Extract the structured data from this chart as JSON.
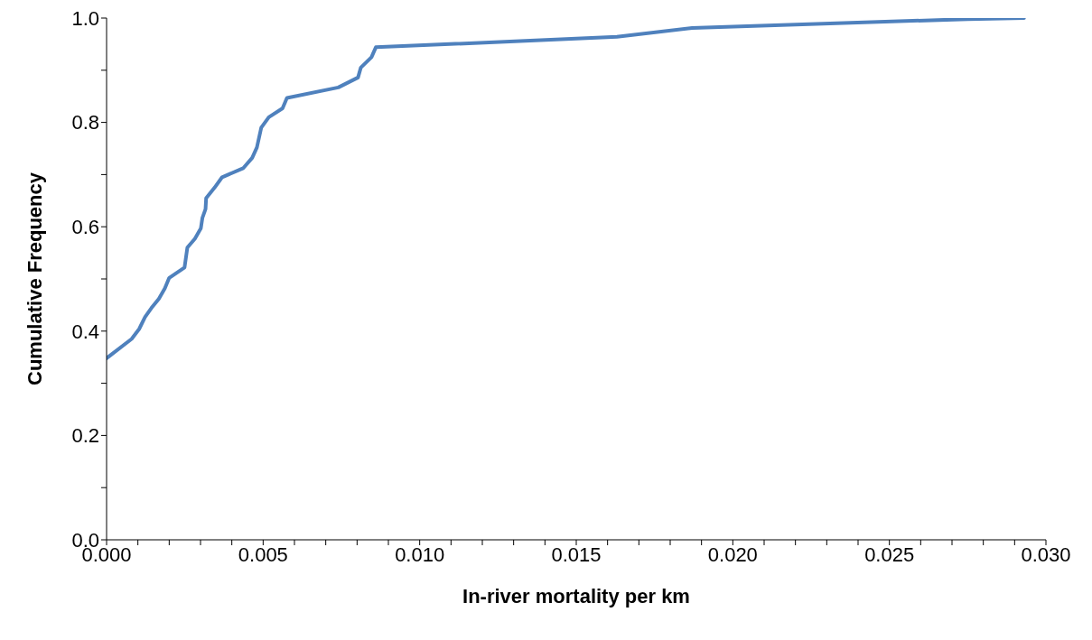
{
  "chart_data": {
    "type": "line",
    "xlabel": "In-river mortality per km",
    "ylabel": "Cumulative Frequency",
    "x": [
      0,
      0.0008,
      0.00104,
      0.00123,
      0.00143,
      0.00167,
      0.00186,
      0.002,
      0.00249,
      0.00258,
      0.00282,
      0.00301,
      0.00306,
      0.00316,
      0.00318,
      0.00345,
      0.00369,
      0.00436,
      0.00465,
      0.0048,
      0.00494,
      0.00518,
      0.00562,
      0.00576,
      0.0074,
      0.00803,
      0.00812,
      0.00846,
      0.0086,
      0.0163,
      0.0187,
      0.0275,
      0.0293
    ],
    "series": [
      {
        "color": "#4f81bd",
        "values": [
          0.348,
          0.385,
          0.404,
          0.427,
          0.444,
          0.462,
          0.482,
          0.502,
          0.522,
          0.56,
          0.577,
          0.597,
          0.617,
          0.634,
          0.655,
          0.675,
          0.695,
          0.712,
          0.732,
          0.752,
          0.79,
          0.81,
          0.827,
          0.847,
          0.867,
          0.886,
          0.905,
          0.925,
          0.944,
          0.964,
          0.981,
          0.998,
          1.0
        ]
      }
    ],
    "xlim": [
      0,
      0.03
    ],
    "xticks": [
      {
        "value": 0,
        "label": "0.000"
      },
      {
        "value": 0.001,
        "label": null
      },
      {
        "value": 0.002,
        "label": null
      },
      {
        "value": 0.003,
        "label": null
      },
      {
        "value": 0.004,
        "label": null
      },
      {
        "value": 0.005,
        "label": "0.005"
      },
      {
        "value": 0.006,
        "label": null
      },
      {
        "value": 0.007,
        "label": null
      },
      {
        "value": 0.008,
        "label": null
      },
      {
        "value": 0.009,
        "label": null
      },
      {
        "value": 0.01,
        "label": "0.010"
      },
      {
        "value": 0.011,
        "label": null
      },
      {
        "value": 0.012,
        "label": null
      },
      {
        "value": 0.013,
        "label": null
      },
      {
        "value": 0.014,
        "label": null
      },
      {
        "value": 0.015,
        "label": "0.015"
      },
      {
        "value": 0.016,
        "label": null
      },
      {
        "value": 0.017,
        "label": null
      },
      {
        "value": 0.018,
        "label": null
      },
      {
        "value": 0.019,
        "label": null
      },
      {
        "value": 0.02,
        "label": "0.020"
      },
      {
        "value": 0.021,
        "label": null
      },
      {
        "value": 0.022,
        "label": null
      },
      {
        "value": 0.023,
        "label": null
      },
      {
        "value": 0.024,
        "label": null
      },
      {
        "value": 0.025,
        "label": "0.025"
      },
      {
        "value": 0.026,
        "label": null
      },
      {
        "value": 0.027,
        "label": null
      },
      {
        "value": 0.028,
        "label": null
      },
      {
        "value": 0.029,
        "label": null
      },
      {
        "value": 0.03,
        "label": "0.030"
      }
    ],
    "ylim": [
      0,
      1
    ],
    "yticks": [
      {
        "value": 0,
        "label": "0.0"
      },
      {
        "value": 0.1,
        "label": null
      },
      {
        "value": 0.2,
        "label": "0.2"
      },
      {
        "value": 0.3,
        "label": null
      },
      {
        "value": 0.4,
        "label": "0.4"
      },
      {
        "value": 0.5,
        "label": null
      },
      {
        "value": 0.6,
        "label": "0.6"
      },
      {
        "value": 0.7,
        "label": null
      },
      {
        "value": 0.8,
        "label": "0.8"
      },
      {
        "value": 0.9,
        "label": null
      },
      {
        "value": 1,
        "label": "1.0"
      }
    ],
    "grid": false,
    "legend": false,
    "marker": "none",
    "line_style": "solid"
  }
}
